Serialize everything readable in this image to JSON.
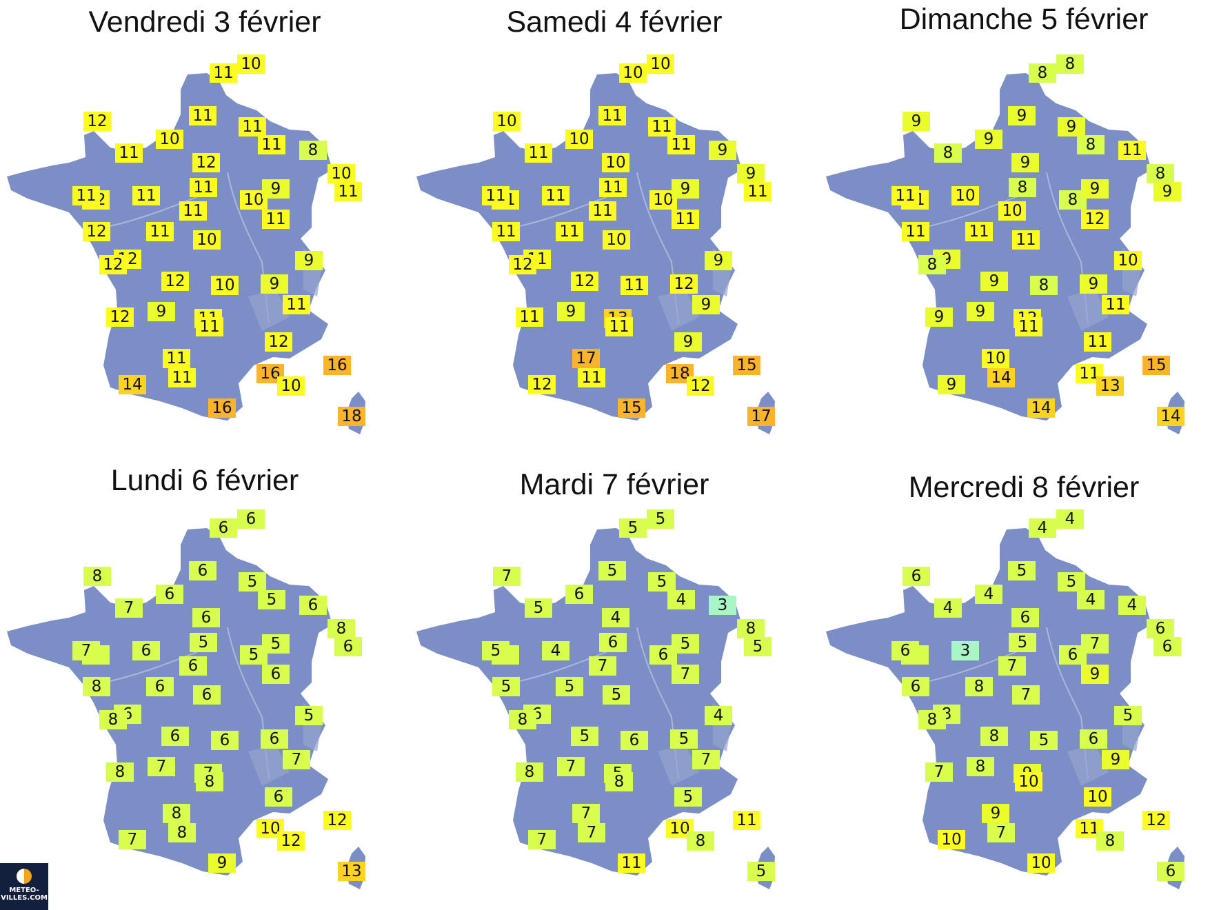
{
  "colors": {
    "background": "#ffffff",
    "land": "#7b8fc6",
    "relief": "#96a4d0",
    "rivers": "#aab6da",
    "temp_3": "#a8f5c8",
    "temp_4_8": "#d7fd4d",
    "temp_9": "#eafc2b",
    "temp_10_12": "#fbfb1f",
    "temp_13_14": "#fdd220",
    "temp_15_18": "#fbb32a"
  },
  "panels": [
    {
      "title": "Vendredi 3 février",
      "values": [
        11,
        10,
        12,
        11,
        11,
        10,
        12,
        11,
        11,
        11,
        8,
        10,
        11,
        12,
        11,
        11,
        11,
        10,
        9,
        12,
        11,
        12,
        10,
        11,
        9,
        12,
        12,
        10,
        9,
        11,
        11,
        12,
        9,
        12,
        11,
        11,
        16,
        16,
        10,
        11,
        14,
        16,
        18
      ]
    },
    {
      "title": "Samedi 4 février",
      "values": [
        10,
        10,
        10,
        11,
        11,
        10,
        10,
        11,
        11,
        11,
        9,
        9,
        11,
        11,
        11,
        11,
        11,
        10,
        9,
        11,
        11,
        11,
        10,
        11,
        9,
        12,
        12,
        11,
        12,
        13,
        9,
        11,
        9,
        9,
        17,
        11,
        18,
        15,
        12,
        11,
        12,
        15,
        17
      ]
    },
    {
      "title": "Dimanche 5 février",
      "values": [
        8,
        8,
        9,
        9,
        8,
        9,
        9,
        9,
        8,
        8,
        11,
        8,
        9,
        11,
        11,
        10,
        10,
        8,
        9,
        11,
        11,
        9,
        11,
        12,
        10,
        8,
        9,
        8,
        9,
        12,
        11,
        9,
        9,
        11,
        10,
        11,
        11,
        15,
        13,
        14,
        9,
        14,
        14
      ]
    },
    {
      "title": "Lundi 6 février",
      "values": [
        6,
        6,
        8,
        6,
        7,
        6,
        6,
        5,
        5,
        5,
        6,
        8,
        6,
        8,
        7,
        6,
        6,
        5,
        5,
        8,
        6,
        6,
        6,
        6,
        5,
        8,
        6,
        6,
        6,
        7,
        7,
        8,
        7,
        6,
        8,
        8,
        10,
        12,
        12,
        8,
        7,
        9,
        13
      ]
    },
    {
      "title": "Mardi 7 février",
      "values": [
        5,
        5,
        7,
        5,
        5,
        6,
        4,
        5,
        4,
        6,
        3,
        8,
        5,
        6,
        5,
        4,
        7,
        6,
        5,
        5,
        5,
        6,
        5,
        7,
        4,
        8,
        5,
        6,
        5,
        5,
        7,
        8,
        7,
        5,
        7,
        8,
        10,
        11,
        8,
        7,
        7,
        11,
        5
      ]
    },
    {
      "title": "Mercredi 8 février",
      "values": [
        4,
        4,
        6,
        5,
        4,
        4,
        6,
        5,
        4,
        5,
        4,
        6,
        6,
        6,
        6,
        3,
        7,
        6,
        7,
        6,
        8,
        8,
        7,
        9,
        5,
        8,
        8,
        5,
        6,
        9,
        9,
        7,
        8,
        10,
        9,
        10,
        11,
        12,
        8,
        7,
        10,
        10,
        6
      ]
    }
  ],
  "logo": {
    "line1": "METEO-",
    "line2": "VILLES.COM"
  }
}
